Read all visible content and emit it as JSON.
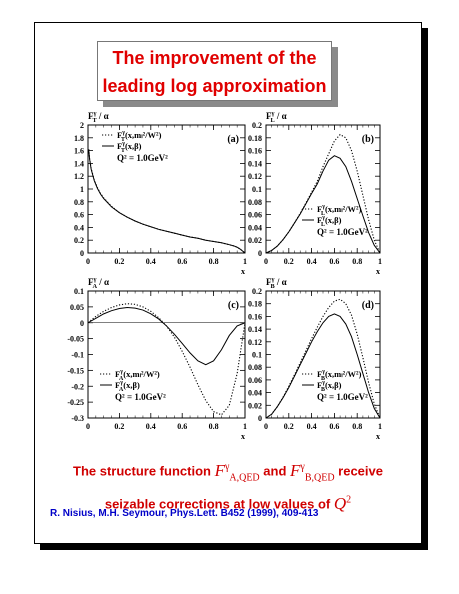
{
  "slide": {
    "title_line1": "The improvement of the",
    "title_line2": "leading log approximation",
    "caption_line1_a": "The structure function ",
    "caption_math1": "F",
    "caption_math1_sup": "γ",
    "caption_math1_sub": "A,QED",
    "caption_line1_and": " and ",
    "caption_math2": "F",
    "caption_math2_sup": "γ",
    "caption_math2_sub": "B,QED",
    "caption_line1_b": " receive",
    "caption_line2": "seizable corrections at low values of ",
    "caption_math3": "Q",
    "caption_math3_sup": "2",
    "reference": "R. Nisius, M.H. Seymour, Phys.Lett. B452 (1999), 409-413"
  },
  "colors": {
    "title": "#e00000",
    "caption": "#d00000",
    "reference": "#0000c8"
  },
  "chart_data": [
    {
      "type": "line",
      "panel_label": "(a)",
      "ylabel": "F_T^γ / α",
      "xlabel": "x",
      "xlim": [
        0,
        1
      ],
      "ylim": [
        0,
        2
      ],
      "xticks": [
        "0",
        "0.2",
        "0.4",
        "0.6",
        "0.8",
        "1"
      ],
      "yticks": [
        "0",
        "0.2",
        "0.4",
        "0.6",
        "0.8",
        "1",
        "1.2",
        "1.4",
        "1.6",
        "1.8",
        "2"
      ],
      "legend_position": "top-left",
      "legend": [
        "F_T^γ(x,m_l²/W²)",
        "F_T^γ(x,β)"
      ],
      "legend_note": "Q² = 1.0GeV²",
      "series": [
        {
          "style": "dotted",
          "x": [
            0.005,
            0.01,
            0.02,
            0.04,
            0.06,
            0.08,
            0.1,
            0.15,
            0.2,
            0.25,
            0.3,
            0.35,
            0.4,
            0.45,
            0.5,
            0.55,
            0.6,
            0.65,
            0.7,
            0.75,
            0.8,
            0.85,
            0.9,
            0.93,
            0.95,
            0.97,
            0.99,
            1.0
          ],
          "y": [
            1.62,
            1.48,
            1.32,
            1.14,
            1.02,
            0.93,
            0.86,
            0.73,
            0.63,
            0.56,
            0.5,
            0.45,
            0.41,
            0.37,
            0.34,
            0.31,
            0.28,
            0.25,
            0.23,
            0.2,
            0.18,
            0.16,
            0.13,
            0.11,
            0.09,
            0.06,
            0.02,
            0.0
          ]
        },
        {
          "style": "solid",
          "x": [
            0.005,
            0.01,
            0.02,
            0.04,
            0.06,
            0.08,
            0.1,
            0.15,
            0.2,
            0.25,
            0.3,
            0.35,
            0.4,
            0.45,
            0.5,
            0.55,
            0.6,
            0.65,
            0.7,
            0.75,
            0.8,
            0.85,
            0.9,
            0.93,
            0.95,
            0.97,
            0.99,
            1.0
          ],
          "y": [
            1.6,
            1.47,
            1.31,
            1.13,
            1.01,
            0.92,
            0.85,
            0.72,
            0.63,
            0.56,
            0.5,
            0.45,
            0.41,
            0.37,
            0.34,
            0.31,
            0.28,
            0.25,
            0.23,
            0.2,
            0.18,
            0.16,
            0.13,
            0.11,
            0.09,
            0.06,
            0.02,
            0.0
          ]
        }
      ]
    },
    {
      "type": "line",
      "panel_label": "(b)",
      "ylabel": "F_L^γ / α",
      "xlabel": "x",
      "xlim": [
        0,
        1
      ],
      "ylim": [
        0,
        0.2
      ],
      "xticks": [
        "0",
        "0.2",
        "0.4",
        "0.6",
        "0.8",
        "1"
      ],
      "yticks": [
        "0",
        "0.02",
        "0.04",
        "0.06",
        "0.08",
        "0.1",
        "0.12",
        "0.14",
        "0.16",
        "0.18",
        "0.2"
      ],
      "legend_position": "bottom-right",
      "legend": [
        "F_L^γ(x,m_l²/W²)",
        "F_L^γ(x,β)"
      ],
      "legend_note": "Q² = 1.0GeV²",
      "series": [
        {
          "style": "dotted",
          "x": [
            0,
            0.05,
            0.1,
            0.15,
            0.2,
            0.25,
            0.3,
            0.35,
            0.4,
            0.45,
            0.5,
            0.55,
            0.6,
            0.65,
            0.7,
            0.75,
            0.8,
            0.85,
            0.9,
            0.95,
            1.0
          ],
          "y": [
            0,
            0.004,
            0.011,
            0.021,
            0.033,
            0.047,
            0.062,
            0.078,
            0.095,
            0.112,
            0.135,
            0.155,
            0.175,
            0.185,
            0.18,
            0.16,
            0.128,
            0.09,
            0.052,
            0.02,
            0.0
          ]
        },
        {
          "style": "solid",
          "x": [
            0,
            0.05,
            0.1,
            0.15,
            0.2,
            0.25,
            0.3,
            0.35,
            0.4,
            0.45,
            0.5,
            0.55,
            0.6,
            0.65,
            0.7,
            0.75,
            0.8,
            0.85,
            0.9,
            0.95,
            1.0
          ],
          "y": [
            0,
            0.004,
            0.011,
            0.021,
            0.033,
            0.047,
            0.061,
            0.077,
            0.093,
            0.108,
            0.128,
            0.145,
            0.152,
            0.148,
            0.135,
            0.112,
            0.085,
            0.058,
            0.032,
            0.012,
            0.0
          ]
        }
      ]
    },
    {
      "type": "line",
      "panel_label": "(c)",
      "ylabel": "F_A^γ / α",
      "xlabel": "x",
      "xlim": [
        0,
        1
      ],
      "ylim": [
        -0.3,
        0.1
      ],
      "xticks": [
        "0",
        "0.2",
        "0.4",
        "0.6",
        "0.8",
        "1"
      ],
      "yticks": [
        "-0.3",
        "-0.25",
        "-0.2",
        "-0.15",
        "-0.1",
        "-0.05",
        "0",
        "0.05",
        "0.1"
      ],
      "legend_position": "bottom-left",
      "legend": [
        "F_A^γ(x,m_l²/W²)",
        "F_A^γ(x,β)"
      ],
      "legend_note": "Q² = 1.0GeV²",
      "series": [
        {
          "style": "dotted",
          "x": [
            0,
            0.05,
            0.1,
            0.15,
            0.2,
            0.25,
            0.3,
            0.35,
            0.4,
            0.45,
            0.5,
            0.55,
            0.6,
            0.65,
            0.7,
            0.75,
            0.8,
            0.85,
            0.9,
            0.95,
            1.0
          ],
          "y": [
            0,
            0.02,
            0.036,
            0.048,
            0.056,
            0.06,
            0.058,
            0.05,
            0.036,
            0.016,
            -0.01,
            -0.045,
            -0.09,
            -0.14,
            -0.195,
            -0.245,
            -0.28,
            -0.29,
            -0.26,
            -0.16,
            0.0
          ]
        },
        {
          "style": "solid",
          "x": [
            0,
            0.05,
            0.1,
            0.15,
            0.2,
            0.25,
            0.3,
            0.35,
            0.4,
            0.45,
            0.5,
            0.55,
            0.6,
            0.65,
            0.7,
            0.75,
            0.8,
            0.85,
            0.9,
            0.95,
            1.0
          ],
          "y": [
            0,
            0.014,
            0.028,
            0.038,
            0.045,
            0.048,
            0.046,
            0.04,
            0.028,
            0.012,
            -0.01,
            -0.036,
            -0.065,
            -0.095,
            -0.12,
            -0.132,
            -0.12,
            -0.085,
            -0.04,
            -0.01,
            0.0
          ]
        }
      ]
    },
    {
      "type": "line",
      "panel_label": "(d)",
      "ylabel": "F_B^γ / α",
      "xlabel": "x",
      "xlim": [
        0,
        1
      ],
      "ylim": [
        0,
        0.2
      ],
      "xticks": [
        "0",
        "0.2",
        "0.4",
        "0.6",
        "0.8",
        "1"
      ],
      "yticks": [
        "0",
        "0.02",
        "0.04",
        "0.06",
        "0.08",
        "0.1",
        "0.12",
        "0.14",
        "0.16",
        "0.18",
        "0.2"
      ],
      "legend_position": "bottom-right",
      "legend": [
        "F_B^γ(x,m_l²/W²)",
        "F_B^γ(x,β)"
      ],
      "legend_note": "Q² = 1.0GeV²",
      "series": [
        {
          "style": "dotted",
          "x": [
            0,
            0.05,
            0.1,
            0.15,
            0.2,
            0.25,
            0.3,
            0.35,
            0.4,
            0.45,
            0.5,
            0.55,
            0.6,
            0.65,
            0.7,
            0.75,
            0.8,
            0.85,
            0.9,
            0.95,
            1.0
          ],
          "y": [
            0,
            0.006,
            0.018,
            0.033,
            0.05,
            0.068,
            0.087,
            0.106,
            0.125,
            0.143,
            0.16,
            0.174,
            0.184,
            0.187,
            0.18,
            0.162,
            0.132,
            0.095,
            0.056,
            0.022,
            0.0
          ]
        },
        {
          "style": "solid",
          "x": [
            0,
            0.05,
            0.1,
            0.15,
            0.2,
            0.25,
            0.3,
            0.35,
            0.4,
            0.45,
            0.5,
            0.55,
            0.6,
            0.65,
            0.7,
            0.75,
            0.8,
            0.85,
            0.9,
            0.95,
            1.0
          ],
          "y": [
            0,
            0.006,
            0.018,
            0.032,
            0.048,
            0.066,
            0.084,
            0.102,
            0.12,
            0.136,
            0.15,
            0.16,
            0.164,
            0.16,
            0.148,
            0.128,
            0.1,
            0.07,
            0.04,
            0.015,
            0.0
          ]
        }
      ]
    }
  ]
}
